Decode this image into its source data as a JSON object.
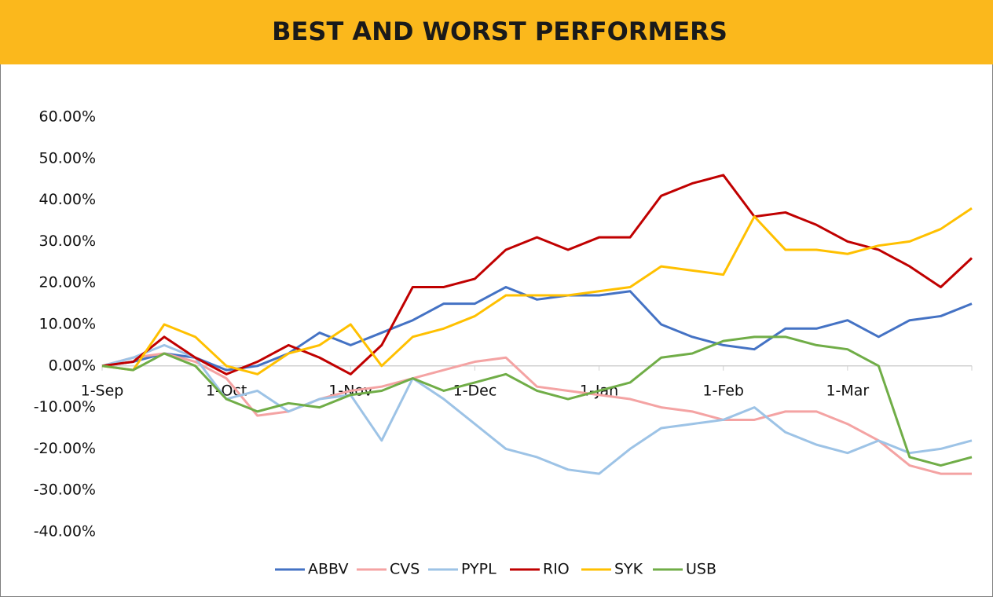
{
  "chart_data": {
    "type": "line",
    "title": "BEST AND WORST PERFORMERS",
    "categories": [
      "1-Sep",
      null,
      null,
      null,
      "1-Oct",
      null,
      null,
      null,
      "1-Nov",
      null,
      null,
      null,
      "1-Dec",
      null,
      null,
      null,
      "1-Jan",
      null,
      null,
      null,
      "1-Feb",
      null,
      null,
      null,
      "1-Mar",
      null,
      null,
      null,
      null
    ],
    "ylim": [
      -40,
      60
    ],
    "yticks": [
      {
        "value": -40,
        "label": "-40.00%"
      },
      {
        "value": -30,
        "label": "-30.00%"
      },
      {
        "value": -20,
        "label": "-20.00%"
      },
      {
        "value": -10,
        "label": "-10.00%"
      },
      {
        "value": 0,
        "label": "0.00%"
      },
      {
        "value": 10,
        "label": "10.00%"
      },
      {
        "value": 20,
        "label": "20.00%"
      },
      {
        "value": 30,
        "label": "30.00%"
      },
      {
        "value": 40,
        "label": "40.00%"
      },
      {
        "value": 50,
        "label": "50.00%"
      },
      {
        "value": 60,
        "label": "60.00%"
      }
    ],
    "grid": false,
    "legend": "bottom",
    "series": [
      {
        "name": "ABBV",
        "color": "#4472c4",
        "values": [
          0,
          1,
          3,
          2,
          -1,
          0,
          3,
          8,
          5,
          8,
          11,
          15,
          15,
          19,
          16,
          17,
          17,
          18,
          10,
          7,
          5,
          4,
          9,
          9,
          11,
          7,
          11,
          12,
          15
        ]
      },
      {
        "name": "CVS",
        "color": "#f4a3a3",
        "values": [
          0,
          2,
          3,
          1,
          -3,
          -12,
          -11,
          -8,
          -6,
          -5,
          -3,
          -1,
          1,
          2,
          -5,
          -6,
          -7,
          -8,
          -10,
          -11,
          -13,
          -13,
          -11,
          -11,
          -14,
          -18,
          -24,
          -26,
          -26
        ]
      },
      {
        "name": "PYPL",
        "color": "#9dc3e6",
        "values": [
          0,
          2,
          5,
          2,
          -8,
          -6,
          -11,
          -8,
          -7,
          -18,
          -3,
          -8,
          -14,
          -20,
          -22,
          -25,
          -26,
          -20,
          -15,
          -14,
          -13,
          -10,
          -16,
          -19,
          -21,
          -18,
          -21,
          -20,
          -18
        ]
      },
      {
        "name": "RIO",
        "color": "#c00000",
        "values": [
          0,
          1,
          7,
          2,
          -2,
          1,
          5,
          2,
          -2,
          5,
          19,
          19,
          21,
          28,
          31,
          28,
          31,
          31,
          41,
          44,
          46,
          36,
          37,
          34,
          30,
          28,
          24,
          19,
          26
        ]
      },
      {
        "name": "SYK",
        "color": "#ffc000",
        "values": [
          0,
          -1,
          10,
          7,
          0,
          -2,
          3,
          5,
          10,
          0,
          7,
          9,
          12,
          17,
          17,
          17,
          18,
          19,
          24,
          23,
          22,
          36,
          28,
          28,
          27,
          29,
          30,
          33,
          38
        ]
      },
      {
        "name": "USB",
        "color": "#70ad47",
        "values": [
          0,
          -1,
          3,
          0,
          -8,
          -11,
          -9,
          -10,
          -7,
          -6,
          -3,
          -6,
          -4,
          -2,
          -6,
          -8,
          -6,
          -4,
          2,
          3,
          6,
          7,
          7,
          5,
          4,
          0,
          -22,
          -24,
          -22
        ]
      }
    ]
  }
}
